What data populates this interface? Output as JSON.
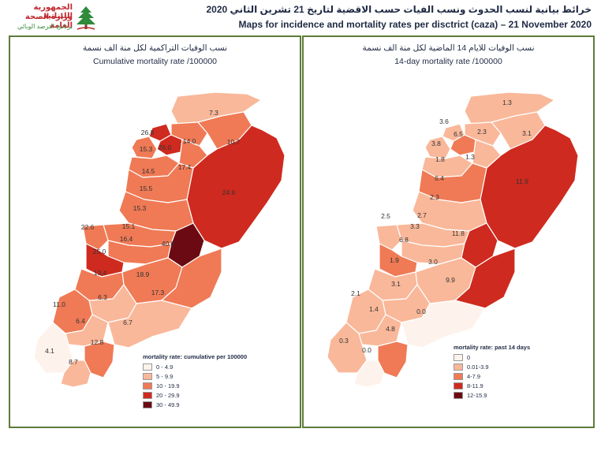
{
  "header": {
    "ministry_ar_line1": "الجمهورية اللبنانية",
    "ministry_ar_line2": "وزارة الصحة العامة",
    "ministry_ar_line3": "برنامج الترصد الوبائي",
    "title_ar": "خرائط بيانية لنسب الحدوث ونسب الفيات حسب الاقضية لتاريخ 21 تشرين الثاني 2020",
    "title_en": "Maps for incidence and mortality rates per disctrict (caza) – 21 November 2020"
  },
  "left_panel": {
    "title_ar": "نسب الوفيات التراكمية لكل منة الف نسمة",
    "title_en": "Cumulative mortality rate /100000",
    "legend_title": "mortality rate: cumulative per 100000",
    "legend": [
      {
        "label": "0 - 4.9",
        "color": "#fdf3ec"
      },
      {
        "label": "5 - 9.9",
        "color": "#f9b89a"
      },
      {
        "label": "10 - 19.9",
        "color": "#ef7a55"
      },
      {
        "label": "20 - 29.9",
        "color": "#cf2a1f"
      },
      {
        "label": "30 - 49.9",
        "color": "#6b0a12"
      }
    ],
    "district_values": [
      "7.3",
      "26.8",
      "26.0",
      "14.0",
      "10.7",
      "15.3",
      "14.5",
      "17.4",
      "15.5",
      "24.6",
      "15.3",
      "22.6",
      "15.1",
      "16.4",
      "40.0",
      "25.0",
      "13.4",
      "18.9",
      "6.3",
      "17.3",
      "11.0",
      "6.4",
      "6.7",
      "4.1",
      "12.8",
      "8.7"
    ]
  },
  "right_panel": {
    "title_ar": "نسب الوفيات للايام 14 الماضية لكل منة الف نسمة",
    "title_en": "14-day mortality rate /100000",
    "legend_title": "mortality rate: past 14 days",
    "legend": [
      {
        "label": "0",
        "color": "#fdf3ec"
      },
      {
        "label": "0.01-3.9",
        "color": "#f9b89a"
      },
      {
        "label": "4-7.9",
        "color": "#ef7a55"
      },
      {
        "label": "8-11.9",
        "color": "#cf2a1f"
      },
      {
        "label": "12-15.9",
        "color": "#6b0a12"
      }
    ],
    "district_values": [
      "1.3",
      "3.6",
      "6.5",
      "2.3",
      "3.1",
      "3.8",
      "1.8",
      "1.3",
      "11.9",
      "6.4",
      "2.3",
      "2.5",
      "2.7",
      "3.3",
      "6.8",
      "11.8",
      "1.9",
      "3.0",
      "3.1",
      "9.9",
      "2.1",
      "1.4",
      "0.0",
      "4.8",
      "0.3",
      "0.0"
    ]
  }
}
